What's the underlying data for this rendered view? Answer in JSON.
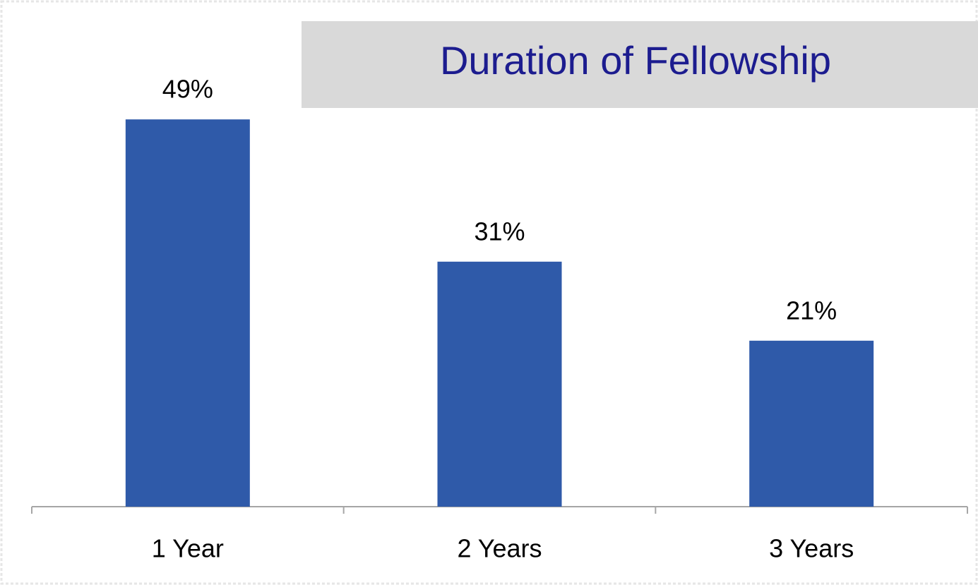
{
  "chart_data": {
    "type": "bar",
    "title": "Duration of Fellowship",
    "categories": [
      "1 Year",
      "2 Years",
      "3 Years"
    ],
    "values": [
      49,
      31,
      21
    ],
    "value_labels": [
      "49%",
      "31%",
      "21%"
    ],
    "color": "#2f5aa9"
  }
}
